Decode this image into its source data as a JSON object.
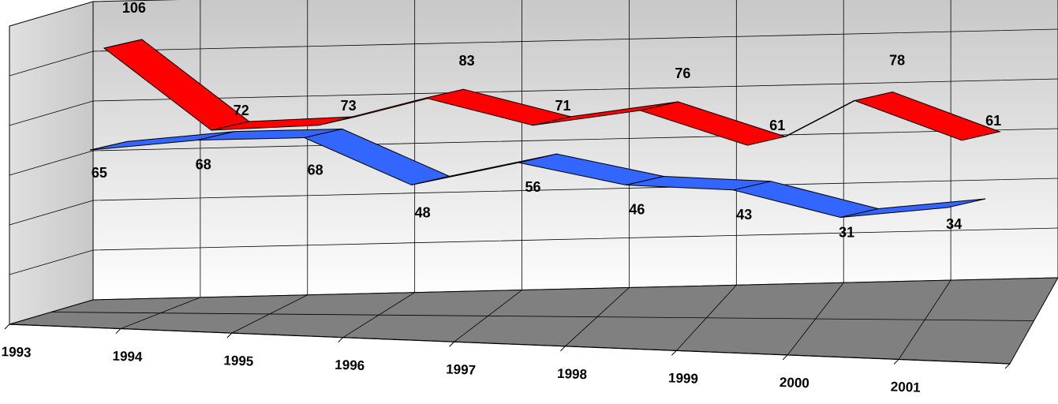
{
  "chart_data": {
    "type": "line",
    "style": "3d-ribbon",
    "categories": [
      "1993",
      "1994",
      "1995",
      "1996",
      "1997",
      "1998",
      "1999",
      "2000",
      "2001"
    ],
    "series": [
      {
        "values": [
          106,
          72,
          73,
          83,
          71,
          76,
          61,
          78,
          61
        ],
        "color": "#ff0000"
      },
      {
        "values": [
          65,
          68,
          68,
          48,
          56,
          46,
          43,
          31,
          34
        ],
        "color": "#3366ff"
      }
    ],
    "grid": true,
    "legend": "none",
    "wall_color": "#c0c0c0",
    "floor_color": "#808080"
  }
}
